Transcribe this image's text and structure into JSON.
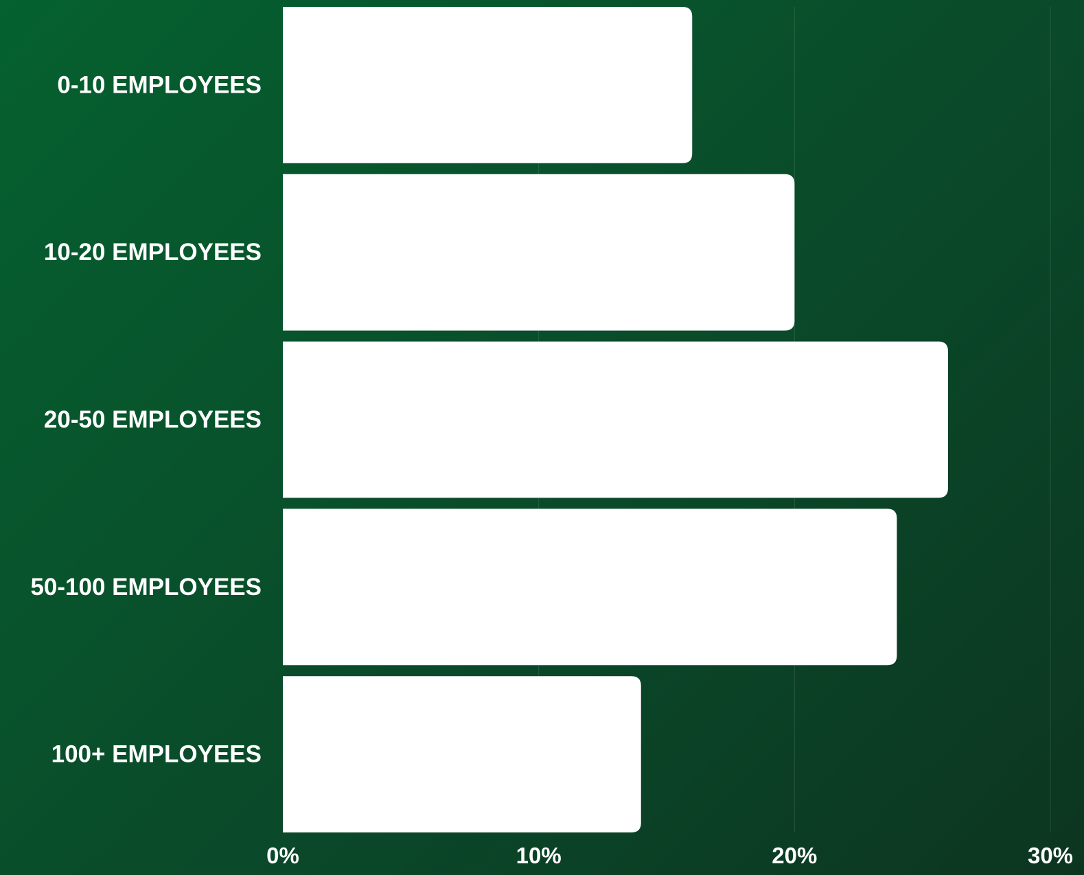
{
  "chart_data": {
    "type": "bar",
    "orientation": "horizontal",
    "categories": [
      "0-10 EMPLOYEES",
      "10-20 EMPLOYEES",
      "20-50 EMPLOYEES",
      "50-100 EMPLOYEES",
      "100+ EMPLOYEES"
    ],
    "values": [
      16,
      20,
      26,
      24,
      14
    ],
    "x_ticks": [
      "0%",
      "10%",
      "20%",
      "30%"
    ],
    "x_tick_values": [
      0,
      10,
      20,
      30
    ],
    "xlim": [
      0,
      30
    ],
    "title": "",
    "xlabel": "",
    "ylabel": "",
    "grid": "vertical",
    "legend": "none",
    "colors": {
      "bar": "#ffffff",
      "text": "#ffffff",
      "background_start": "#05612f",
      "background_end": "#0c3520"
    }
  }
}
